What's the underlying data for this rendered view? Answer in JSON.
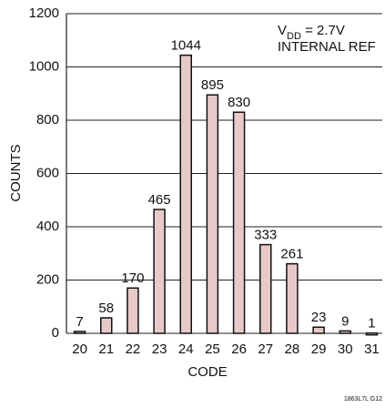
{
  "chart_data": {
    "type": "bar",
    "x_label": "CODE",
    "y_label": "COUNTS",
    "categories": [
      "20",
      "21",
      "22",
      "23",
      "24",
      "25",
      "26",
      "27",
      "28",
      "29",
      "30",
      "31"
    ],
    "values": [
      7,
      58,
      170,
      465,
      1044,
      895,
      830,
      333,
      261,
      23,
      9,
      1
    ],
    "color": "#e8c9c9",
    "ylim": [
      0,
      1200
    ],
    "yticks": [
      0,
      200,
      400,
      600,
      800,
      1000,
      1200
    ],
    "grid": true,
    "annotation": [
      [
        "V",
        "DD",
        " = 2.7V"
      ],
      [
        "INTERNAL REF"
      ]
    ],
    "footnote": "1863L7L G12"
  }
}
